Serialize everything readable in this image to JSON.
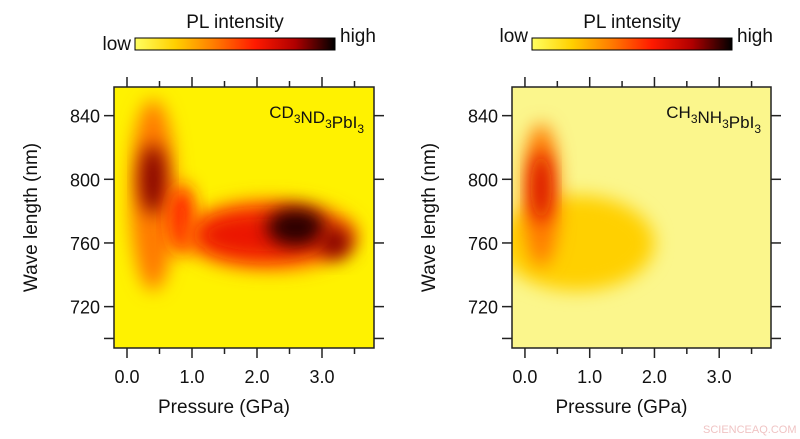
{
  "colorbar": {
    "title": "PL intensity",
    "low_label": "low",
    "high_label": "high",
    "colormap": [
      "#ffff60",
      "#ffd000",
      "#ff7a00",
      "#ff1a00",
      "#b00000",
      "#000000"
    ]
  },
  "watermark": "SCIENCEAQ.COM",
  "chart_data": [
    {
      "type": "heatmap",
      "title": "",
      "sample_label": {
        "main": "CD",
        "parts": [
          [
            "CD",
            "3"
          ],
          [
            "ND",
            "3"
          ],
          [
            "PbI",
            "3"
          ]
        ]
      },
      "xlabel": "Pressure (GPa)",
      "ylabel": "Wave length (nm)",
      "xlim": [
        -0.2,
        3.8
      ],
      "ylim": [
        694,
        858
      ],
      "xticks": [
        0.0,
        1.0,
        2.0,
        3.0
      ],
      "xtick_labels": [
        "0.0",
        "1.0",
        "2.0",
        "3.0"
      ],
      "yticks": [
        720,
        760,
        800,
        840
      ],
      "ytick_labels": [
        "720",
        "760",
        "800",
        "840"
      ],
      "background_intensity": 0.1,
      "features": [
        {
          "pressure": 0.4,
          "wavelength": 790,
          "sx": 0.35,
          "sy": 60,
          "intensity": 0.4
        },
        {
          "pressure": 0.4,
          "wavelength": 800,
          "sx": 0.2,
          "sy": 22,
          "intensity": 0.85
        },
        {
          "pressure": 0.85,
          "wavelength": 775,
          "sx": 0.2,
          "sy": 22,
          "intensity": 0.6
        },
        {
          "pressure": 2.2,
          "wavelength": 765,
          "sx": 1.35,
          "sy": 22,
          "intensity": 0.45
        },
        {
          "pressure": 2.1,
          "wavelength": 765,
          "sx": 1.0,
          "sy": 14,
          "intensity": 0.65
        },
        {
          "pressure": 2.6,
          "wavelength": 770,
          "sx": 0.45,
          "sy": 12,
          "intensity": 0.95
        },
        {
          "pressure": 3.2,
          "wavelength": 760,
          "sx": 0.25,
          "sy": 10,
          "intensity": 0.85
        }
      ]
    },
    {
      "type": "heatmap",
      "title": "",
      "sample_label": {
        "main": "CH",
        "parts": [
          [
            "CH",
            "3"
          ],
          [
            "NH",
            "3"
          ],
          [
            "PbI",
            "3"
          ]
        ]
      },
      "xlabel": "Pressure (GPa)",
      "ylabel": "Wave length (nm)",
      "xlim": [
        -0.2,
        3.8
      ],
      "ylim": [
        694,
        858
      ],
      "xticks": [
        0.0,
        1.0,
        2.0,
        3.0
      ],
      "xtick_labels": [
        "0.0",
        "1.0",
        "2.0",
        "3.0"
      ],
      "yticks": [
        720,
        760,
        800,
        840
      ],
      "ytick_labels": [
        "720",
        "760",
        "800",
        "840"
      ],
      "background_intensity": 0.02,
      "features": [
        {
          "pressure": 0.8,
          "wavelength": 760,
          "sx": 1.2,
          "sy": 30,
          "intensity": 0.2
        },
        {
          "pressure": 0.25,
          "wavelength": 790,
          "sx": 0.28,
          "sy": 45,
          "intensity": 0.4
        },
        {
          "pressure": 0.25,
          "wavelength": 795,
          "sx": 0.16,
          "sy": 22,
          "intensity": 0.7
        }
      ]
    }
  ]
}
